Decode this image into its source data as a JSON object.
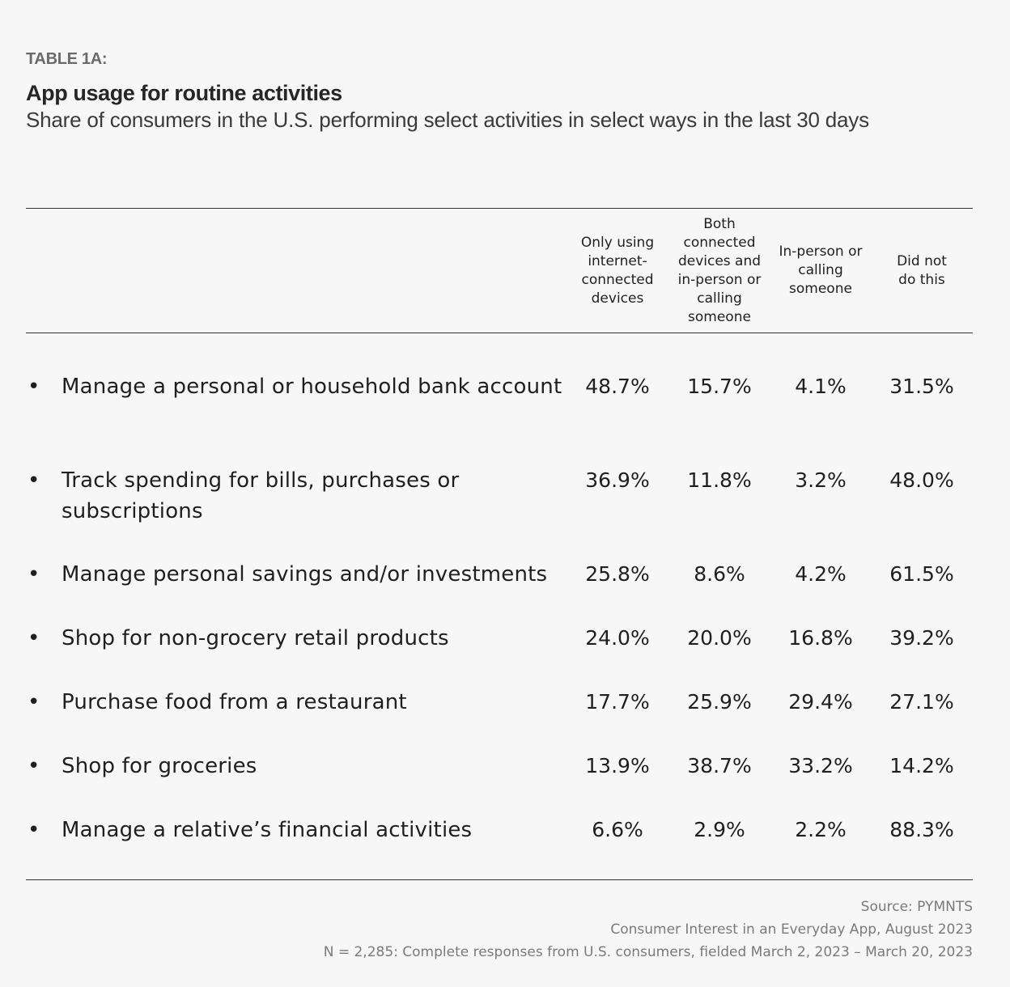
{
  "header": {
    "table_label": "TABLE 1A:",
    "title": "App usage for routine activities",
    "subtitle": "Share of consumers in the U.S. performing select activities in select ways in the last 30 days"
  },
  "columns": [
    [
      "Only using",
      "internet-",
      "connected",
      "devices"
    ],
    [
      "Both",
      "connected",
      "devices and",
      "in-person or",
      "calling",
      "someone"
    ],
    [
      "In-person or",
      "calling",
      "someone"
    ],
    [
      "Did not",
      "do this"
    ]
  ],
  "rows": [
    {
      "label": "Manage a personal or household bank account",
      "values": [
        "48.7%",
        "15.7%",
        "4.1%",
        "31.5%"
      ]
    },
    {
      "label": "Track spending for bills, purchases or subscriptions",
      "values": [
        "36.9%",
        "11.8%",
        "3.2%",
        "48.0%"
      ]
    },
    {
      "label": "Manage personal savings and/or investments",
      "values": [
        "25.8%",
        "8.6%",
        "4.2%",
        "61.5%"
      ]
    },
    {
      "label": "Shop for non-grocery retail products",
      "values": [
        "24.0%",
        "20.0%",
        "16.8%",
        "39.2%"
      ]
    },
    {
      "label": "Purchase food from a restaurant",
      "values": [
        "17.7%",
        "25.9%",
        "29.4%",
        "27.1%"
      ]
    },
    {
      "label": "Shop for groceries",
      "values": [
        "13.9%",
        "38.7%",
        "33.2%",
        "14.2%"
      ]
    },
    {
      "label": "Manage a relative’s financial activities",
      "values": [
        "6.6%",
        "2.9%",
        "2.2%",
        "88.3%"
      ]
    }
  ],
  "footer": {
    "source": "Source: PYMNTS",
    "report": "Consumer Interest in an Everyday App, August 2023",
    "note": "N = 2,285: Complete responses from U.S. consumers, fielded March 2, 2023 – March 20, 2023"
  },
  "bullet_char": "•"
}
